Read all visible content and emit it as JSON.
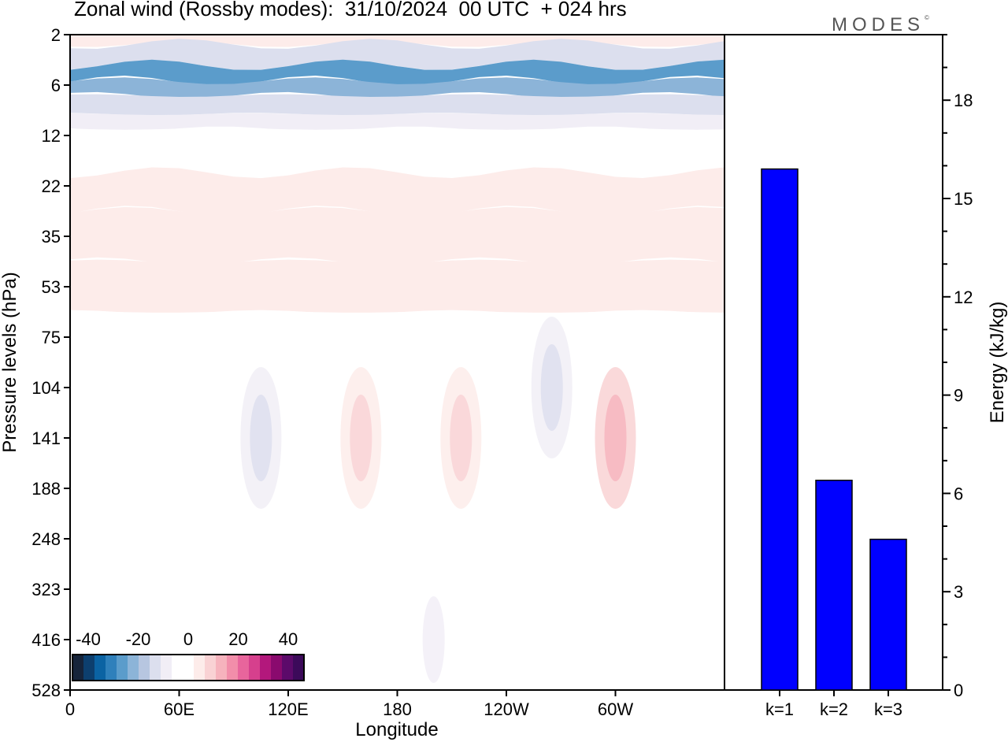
{
  "title": "Zonal wind (Rossby modes):  31/10/2024  00 UTC  + 024 hrs",
  "brand": "MODES",
  "brand_mark": "©",
  "chart_data": [
    {
      "type": "heatmap",
      "title": "Zonal wind (Rossby modes):  31/10/2024  00 UTC  + 024 hrs",
      "xlabel": "Longitude",
      "ylabel": "Pressure levels (hPa)",
      "x_ticks": [
        "0",
        "60E",
        "120E",
        "180",
        "120W",
        "60W"
      ],
      "y_ticks": [
        "2",
        "6",
        "12",
        "22",
        "35",
        "53",
        "75",
        "104",
        "141",
        "188",
        "248",
        "323",
        "416",
        "528"
      ],
      "colorbar": {
        "labels": [
          "-40",
          "-20",
          "0",
          "20",
          "40"
        ],
        "levels": [
          -40,
          -36,
          -32,
          -28,
          -24,
          -20,
          -16,
          -12,
          -8,
          -4,
          0,
          4,
          8,
          12,
          16,
          20,
          24,
          28,
          32,
          36,
          40
        ],
        "colors": [
          "#16243a",
          "#0d3f6e",
          "#0b63a3",
          "#2f80bb",
          "#5b9ccb",
          "#8cb4d8",
          "#b7c6e0",
          "#dcdfee",
          "#f1eef6",
          "#ffffff",
          "#ffffff",
          "#fdecea",
          "#f9d2d4",
          "#f6b3bd",
          "#f28eaa",
          "#e8659c",
          "#d6408d",
          "#b3187c",
          "#8a0a6e",
          "#5c0a6a",
          "#3c0a5a"
        ]
      },
      "field_bands": [
        {
          "level": "2",
          "value": 6
        },
        {
          "level": "3",
          "value": -10
        },
        {
          "level": "5",
          "value": -22
        },
        {
          "level": "6",
          "value": -18
        },
        {
          "level": "8",
          "value": -12
        },
        {
          "level": "10",
          "value": -5
        },
        {
          "level": "12",
          "value": -1
        },
        {
          "level": "16",
          "value": 2
        },
        {
          "level": "22",
          "value": 5
        },
        {
          "level": "35",
          "value": 6
        },
        {
          "level": "53",
          "value": 4
        },
        {
          "level": "75",
          "value": 1
        },
        {
          "level": "104",
          "value": -1
        },
        {
          "level": "141",
          "value": -1
        },
        {
          "level": "188",
          "value": 1
        },
        {
          "level": "248",
          "value": 1
        },
        {
          "level": "323",
          "value": 1
        },
        {
          "level": "416",
          "value": -1
        },
        {
          "level": "528",
          "value": -1
        }
      ],
      "field_features": [
        {
          "lon": 105,
          "level": "141",
          "value": -6
        },
        {
          "lon": 265,
          "level": "104",
          "value": -5
        },
        {
          "lon": 300,
          "level": "141",
          "value": 8
        },
        {
          "lon": 160,
          "level": "141",
          "value": 4
        },
        {
          "lon": 215,
          "level": "141",
          "value": 4
        },
        {
          "lon": 200,
          "level": "416",
          "value": -3
        }
      ]
    },
    {
      "type": "bar",
      "categories": [
        "k=1",
        "k=2",
        "k=3"
      ],
      "values": [
        15.9,
        6.4,
        4.6
      ],
      "ylabel": "Energy (kJ/kg)",
      "ylim": [
        0,
        20
      ],
      "y_ticks": [
        "0",
        "3",
        "6",
        "9",
        "12",
        "15",
        "18"
      ],
      "bar_color": "#0000ff"
    }
  ]
}
